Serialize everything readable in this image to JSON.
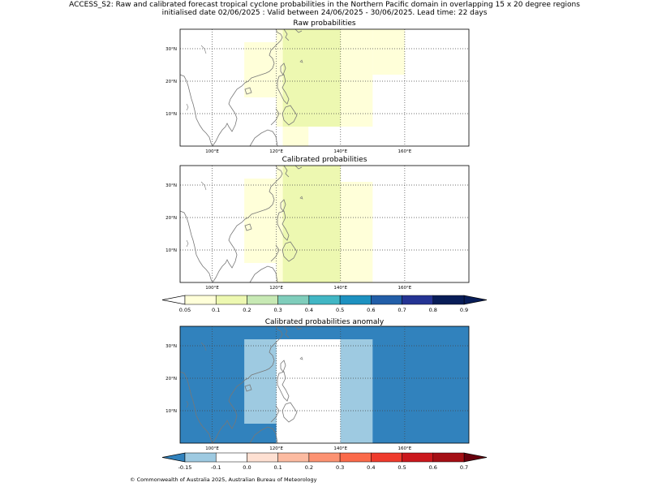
{
  "header": {
    "line1": "ACCESS_S2: Raw and calibrated forecast tropical cyclone probabilities in the Northern Pacific domain in overlapping 15 x 20 degree regions",
    "line2": "initialised date 02/06/2025 :  Valid between 24/06/2025 - 30/06/2025. Lead time: 22 days"
  },
  "axes": {
    "lon_ticks": [
      "100°E",
      "120°E",
      "140°E",
      "160°E"
    ],
    "lat_ticks": [
      "30°N",
      "20°N",
      "10°N"
    ]
  },
  "panels": [
    {
      "id": "raw",
      "title": "Raw probabilities",
      "cells": [
        {
          "lon": [
            110,
            120
          ],
          "lat": [
            15,
            32
          ],
          "value": 0.07
        },
        {
          "lon": [
            120,
            122
          ],
          "lat": [
            6,
            36
          ],
          "value": 0.07
        },
        {
          "lon": [
            122,
            140
          ],
          "lat": [
            6,
            36
          ],
          "value": 0.12
        },
        {
          "lon": [
            122,
            130
          ],
          "lat": [
            0,
            6
          ],
          "value": 0.07
        },
        {
          "lon": [
            140,
            150
          ],
          "lat": [
            6,
            36
          ],
          "value": 0.07
        },
        {
          "lon": [
            150,
            160
          ],
          "lat": [
            22,
            36
          ],
          "value": 0.07
        }
      ]
    },
    {
      "id": "calibrated",
      "title": "Calibrated probabilities",
      "cells": [
        {
          "lon": [
            110,
            120
          ],
          "lat": [
            6,
            32
          ],
          "value": 0.07
        },
        {
          "lon": [
            120,
            122
          ],
          "lat": [
            0,
            36
          ],
          "value": 0.07
        },
        {
          "lon": [
            122,
            140
          ],
          "lat": [
            0,
            36
          ],
          "value": 0.12
        },
        {
          "lon": [
            140,
            150
          ],
          "lat": [
            0,
            31
          ],
          "value": 0.07
        }
      ]
    },
    {
      "id": "anomaly",
      "title": "Calibrated probabilities anomaly",
      "cells": [
        {
          "lon": [
            90,
            180
          ],
          "lat": [
            0,
            36
          ],
          "color": "#3182bd"
        },
        {
          "lon": [
            110,
            120
          ],
          "lat": [
            6,
            32
          ],
          "color": "#9ecae1"
        },
        {
          "lon": [
            120,
            140
          ],
          "lat": [
            0,
            32
          ],
          "color": "#ffffff"
        },
        {
          "lon": [
            140,
            150
          ],
          "lat": [
            0,
            32
          ],
          "color": "#9ecae1"
        }
      ]
    }
  ],
  "colorbar_prob": {
    "labels": [
      "0.05",
      "0.1",
      "0.2",
      "0.3",
      "0.4",
      "0.5",
      "0.6",
      "0.7",
      "0.8",
      "0.9"
    ],
    "colors": [
      "#ffffd9",
      "#edf8b1",
      "#c7e9b4",
      "#7fcdbb",
      "#41b6c4",
      "#1d91c0",
      "#225ea8",
      "#253494",
      "#081d58"
    ],
    "under": "#ffffff",
    "over": "#081d58"
  },
  "colorbar_anom": {
    "labels": [
      "-0.15",
      "-0.1",
      "0.0",
      "0.1",
      "0.2",
      "0.3",
      "0.4",
      "0.5",
      "0.6",
      "0.7"
    ],
    "colors": [
      "#9ecae1",
      "#ffffff",
      "#fee0d2",
      "#fcbba1",
      "#fc9272",
      "#fb6a4a",
      "#ef3b2c",
      "#cb181d",
      "#a50f15"
    ],
    "under": "#3182bd",
    "over": "#67000d"
  },
  "footer": {
    "copyright": "© Commonwealth of Australia 2025, Australian Bureau of Meteorology"
  }
}
